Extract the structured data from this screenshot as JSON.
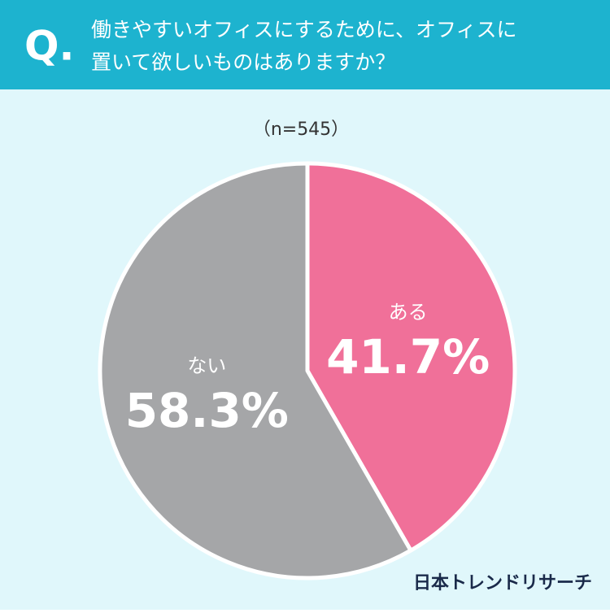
{
  "chart_data": {
    "type": "pie",
    "question_mark": "Q.",
    "title": [
      "働きやすいオフィスにするために、オフィスに",
      "置いて欲しいものはありますか？"
    ],
    "subtitle": "（n=545）",
    "categories": [
      "ある",
      "ない"
    ],
    "values": [
      41.7,
      58.3
    ],
    "value_labels": [
      "41.7%",
      "58.3%"
    ],
    "colors": [
      "#f07099",
      "#a5a6a8"
    ],
    "source": "日本トレンドリサーチ"
  }
}
